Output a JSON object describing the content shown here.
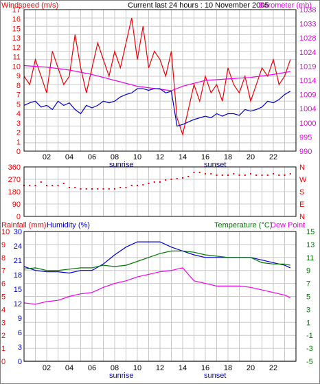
{
  "colors": {
    "windspeed": "#ee0000",
    "barometer": "#ee00ee",
    "blue": "#0000cc",
    "direction": "#ee0000",
    "rain": "#ee0000",
    "humidity": "#0000cc",
    "temperature": "#007700",
    "dewpoint": "#ee00ee",
    "grid": "#c8c8c8",
    "axis": "#000000"
  },
  "panel1": {
    "title": "Current last 24 hours : 10 November 2005",
    "left_label": "Windspeed (m/s)",
    "right_label": "Barometer (mb)",
    "left_ticks": [
      "17",
      "16",
      "15",
      "13",
      "12",
      "11",
      "10",
      "9",
      "8",
      "7",
      "5",
      "4",
      "3",
      "2",
      "1",
      "0"
    ],
    "right_ticks": [
      "1038",
      "1033",
      "1028",
      "1024",
      "1019",
      "1014",
      "1009",
      "1004",
      "1000",
      "995",
      "990"
    ],
    "x_ticks": [
      "02",
      "04",
      "06",
      "08",
      "10",
      "12",
      "14",
      "16",
      "18",
      "20",
      "22"
    ],
    "sunrise": "sunrise",
    "sunset": "sunset"
  },
  "panel2": {
    "left_ticks": [
      "360",
      "270",
      "180",
      "90",
      "0"
    ],
    "right_ticks": [
      "N",
      "W",
      "S",
      "E",
      "N"
    ]
  },
  "panel3": {
    "rain_label": "Rainfall (mm)",
    "humidity_label": "Humidity (%)",
    "temp_label": "Temperature (°C)",
    "dew_label": "Dew Point",
    "rain_ticks": [
      "10",
      "9",
      "8",
      "7",
      "6",
      "5",
      "4",
      "3",
      "2",
      "1",
      "0"
    ],
    "humidity_ticks": [
      "30",
      "24",
      "21",
      "18",
      "15",
      "12",
      "9",
      "6",
      "3",
      "0"
    ],
    "temp_ticks": [
      "15",
      "13",
      "11",
      "9",
      "7",
      "5",
      "3",
      "1",
      "-1",
      "-3",
      "-5"
    ],
    "x_ticks": [
      "02",
      "04",
      "06",
      "08",
      "10",
      "12",
      "14",
      "16",
      "18",
      "20",
      "22"
    ],
    "sunrise": "sunrise",
    "sunset": "sunset"
  },
  "chart_data": [
    {
      "type": "line",
      "title": "Current last 24 hours : 10 November 2005",
      "x_unit": "hour",
      "xlim": [
        0,
        24
      ],
      "ylim_left": [
        0,
        17
      ],
      "ylim_right": [
        990,
        1038
      ],
      "series": [
        {
          "name": "Windspeed (m/s)",
          "axis": "left",
          "color": "#ee0000",
          "x": [
            0,
            0.5,
            1,
            1.5,
            2,
            2.5,
            3,
            3.5,
            4,
            4.5,
            5,
            5.5,
            6,
            6.5,
            7,
            7.5,
            8,
            8.5,
            9,
            9.5,
            10,
            10.5,
            11,
            11.5,
            12,
            12.5,
            13,
            13.5,
            14,
            14.5,
            15,
            15.5,
            16,
            16.5,
            17,
            17.5,
            18,
            18.5,
            19,
            19.5,
            20,
            20.5,
            21,
            21.5,
            22,
            22.5,
            23,
            23.5
          ],
          "y": [
            9,
            8,
            11,
            9,
            7,
            12,
            10,
            8,
            9,
            14,
            10,
            7,
            10,
            13,
            11,
            9,
            12,
            10,
            13,
            16,
            11,
            15,
            10,
            12,
            11,
            9,
            12,
            4,
            2,
            5,
            8,
            6,
            9,
            7,
            8,
            6,
            10,
            8,
            7,
            9,
            6,
            8,
            10,
            9,
            11,
            8,
            9,
            11
          ]
        },
        {
          "name": "Barometer (mb)",
          "axis": "right",
          "color": "#ee00ee",
          "x": [
            0,
            2,
            4,
            6,
            8,
            10,
            12,
            13,
            14,
            16,
            18,
            20,
            22,
            23.5
          ],
          "y": [
            1019,
            1018.5,
            1017.5,
            1016,
            1014,
            1012,
            1011,
            1010.5,
            1012,
            1014,
            1014.5,
            1015,
            1016,
            1017
          ]
        },
        {
          "name": "",
          "axis": "left",
          "color": "#0000cc",
          "x": [
            0,
            0.5,
            1,
            1.5,
            2,
            2.5,
            3,
            3.5,
            4,
            4.5,
            5,
            5.5,
            6,
            6.5,
            7,
            7.5,
            8,
            8.5,
            9,
            9.5,
            10,
            10.5,
            11,
            11.5,
            12,
            12.5,
            13,
            13.5,
            14,
            14.5,
            15,
            15.5,
            16,
            16.5,
            17,
            17.5,
            18,
            18.5,
            19,
            19.5,
            20,
            20.5,
            21,
            21.5,
            22,
            22.5,
            23,
            23.5
          ],
          "y": [
            5.5,
            5.8,
            6,
            5.3,
            5.5,
            5,
            6,
            5.5,
            5.8,
            5,
            4.5,
            5.5,
            5.2,
            5.5,
            6,
            5.8,
            6,
            6.5,
            6.8,
            7,
            7.5,
            7.5,
            7.3,
            7.5,
            7.5,
            7,
            7.2,
            3,
            3.2,
            3.5,
            3.8,
            4,
            4.2,
            4,
            4.5,
            4.2,
            4.5,
            4.5,
            4.3,
            5,
            4.8,
            5,
            5.3,
            6,
            5.8,
            6.2,
            6.8,
            7.2
          ]
        }
      ],
      "annotations": [
        "sunrise",
        "sunset"
      ]
    },
    {
      "type": "scatter",
      "xlim": [
        0,
        24
      ],
      "ylim": [
        0,
        360
      ],
      "series": [
        {
          "name": "",
          "color": "#ee0000",
          "x": [
            0,
            0.5,
            1,
            1.5,
            2,
            2.5,
            3,
            3.5,
            4,
            4.5,
            5,
            5.5,
            6,
            6.5,
            7,
            7.5,
            8,
            8.5,
            9,
            9.5,
            10,
            10.5,
            11,
            11.5,
            12,
            12.5,
            13,
            13.5,
            14,
            14.5,
            15,
            15.5,
            16,
            16.5,
            17,
            17.5,
            18,
            18.5,
            19,
            19.5,
            20,
            20.5,
            21,
            21.5,
            22,
            22.5,
            23,
            23.5
          ],
          "y": [
            225,
            225,
            225,
            250,
            225,
            225,
            225,
            240,
            210,
            210,
            200,
            200,
            200,
            200,
            200,
            200,
            200,
            210,
            210,
            225,
            225,
            230,
            240,
            250,
            250,
            265,
            270,
            275,
            280,
            290,
            320,
            320,
            310,
            310,
            300,
            300,
            300,
            310,
            300,
            300,
            310,
            300,
            300,
            300,
            310,
            300,
            300,
            310
          ]
        }
      ]
    },
    {
      "type": "line",
      "xlim": [
        0,
        24
      ],
      "ylim": [
        0,
        100
      ],
      "series": [
        {
          "name": "Humidity (%)",
          "color": "#0000cc",
          "x": [
            0,
            1,
            2,
            3,
            4,
            5,
            6,
            7,
            8,
            9,
            10,
            11,
            12,
            13,
            14,
            15,
            16,
            17,
            18,
            19,
            20,
            21,
            22,
            23,
            23.5
          ],
          "y": [
            73,
            70,
            69,
            69,
            68,
            70,
            70,
            75,
            82,
            88,
            92,
            92,
            92,
            88,
            85,
            82,
            80,
            80,
            80,
            80,
            80,
            78,
            76,
            74,
            72
          ]
        },
        {
          "name": "Temperature (°C)",
          "color": "#007700",
          "x": [
            0,
            1,
            2,
            3,
            4,
            5,
            6,
            7,
            8,
            9,
            10,
            11,
            12,
            13,
            14,
            15,
            16,
            17,
            18,
            19,
            20,
            21,
            22,
            23,
            23.5
          ],
          "y": [
            71,
            72,
            70,
            70,
            71,
            72,
            72,
            74,
            73,
            74,
            77,
            80,
            83,
            85,
            85,
            84,
            82,
            81,
            80,
            80,
            80,
            76,
            75,
            75,
            74
          ]
        },
        {
          "name": "Dew Point",
          "color": "#ee00ee",
          "x": [
            0,
            1,
            2,
            3,
            4,
            5,
            6,
            7,
            8,
            9,
            10,
            11,
            12,
            13,
            14,
            15,
            16,
            17,
            18,
            19,
            20,
            21,
            22,
            23,
            23.5
          ],
          "y": [
            45,
            44,
            46,
            47,
            50,
            52,
            53,
            57,
            60,
            62,
            65,
            67,
            69,
            70,
            72,
            62,
            60,
            58,
            58,
            58,
            57,
            55,
            53,
            51,
            49
          ]
        },
        {
          "name": "Rainfall (mm)",
          "color": "#ee0000",
          "x": [
            0,
            24
          ],
          "y": [
            0.2,
            0.2
          ]
        }
      ],
      "annotations": [
        "sunrise",
        "sunset"
      ]
    }
  ]
}
